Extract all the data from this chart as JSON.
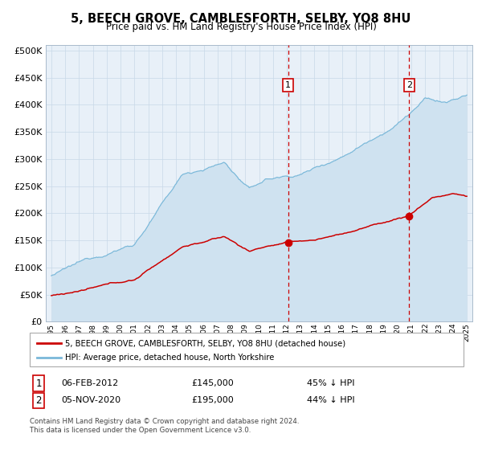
{
  "title": "5, BEECH GROVE, CAMBLESFORTH, SELBY, YO8 8HU",
  "subtitle": "Price paid vs. HM Land Registry's House Price Index (HPI)",
  "legend_line1": "5, BEECH GROVE, CAMBLESFORTH, SELBY, YO8 8HU (detached house)",
  "legend_line2": "HPI: Average price, detached house, North Yorkshire",
  "annotation1_label": "1",
  "annotation1_date": "06-FEB-2012",
  "annotation1_price": "£145,000",
  "annotation1_pct": "45% ↓ HPI",
  "annotation2_label": "2",
  "annotation2_date": "05-NOV-2020",
  "annotation2_price": "£195,000",
  "annotation2_pct": "44% ↓ HPI",
  "footnote1": "Contains HM Land Registry data © Crown copyright and database right 2024.",
  "footnote2": "This data is licensed under the Open Government Licence v3.0.",
  "hpi_color": "#7ab8d9",
  "hpi_fill_color": "#cfe2f0",
  "price_color": "#cc0000",
  "dashed_line_color": "#cc0000",
  "marker1_x": 2012.09,
  "marker1_y": 145000,
  "marker2_x": 2020.84,
  "marker2_y": 195000,
  "vline1_x": 2012.09,
  "vline2_x": 2020.84,
  "ylim": [
    0,
    510000
  ],
  "xlim": [
    1994.6,
    2025.4
  ],
  "yticks": [
    0,
    50000,
    100000,
    150000,
    200000,
    250000,
    300000,
    350000,
    400000,
    450000,
    500000
  ],
  "background_color": "#ffffff",
  "plot_bg_color": "#e8f0f8"
}
